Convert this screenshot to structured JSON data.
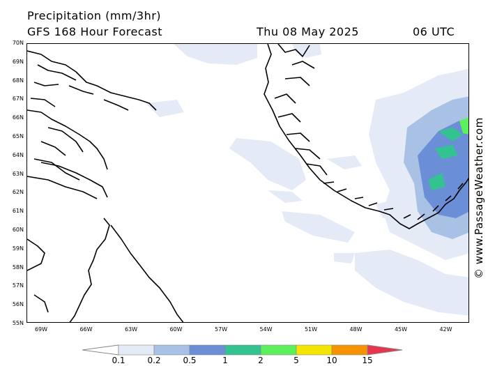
{
  "header": {
    "title_line1": "Precipitation (mm/3hr)",
    "title_line2": "GFS 168 Hour Forecast",
    "valid_date": "Thu 08 May 2025",
    "valid_time": "06 UTC"
  },
  "credit": "© www.PassageWeather.com",
  "map": {
    "region": "Greenland / Labrador Sea",
    "latitude_labels": [
      "70N",
      "69N",
      "68N",
      "67N",
      "66N",
      "65N",
      "64N",
      "63N",
      "62N",
      "61N",
      "60N",
      "59N",
      "58N",
      "57N",
      "56N",
      "55N"
    ],
    "longitude_labels": [
      "69W",
      "66W",
      "63W",
      "60W",
      "57W",
      "54W",
      "51W",
      "48W",
      "45W",
      "42W"
    ]
  },
  "legend": {
    "units": "mm/3hr",
    "levels": [
      "0.1",
      "0.2",
      "0.5",
      "1",
      "2",
      "5",
      "10",
      "15"
    ],
    "colors": [
      "#ffffff",
      "#e4ebf7",
      "#a8c1e4",
      "#6a8fd6",
      "#32c391",
      "#5cf05c",
      "#f5e400",
      "#f59400",
      "#e8344e"
    ]
  }
}
